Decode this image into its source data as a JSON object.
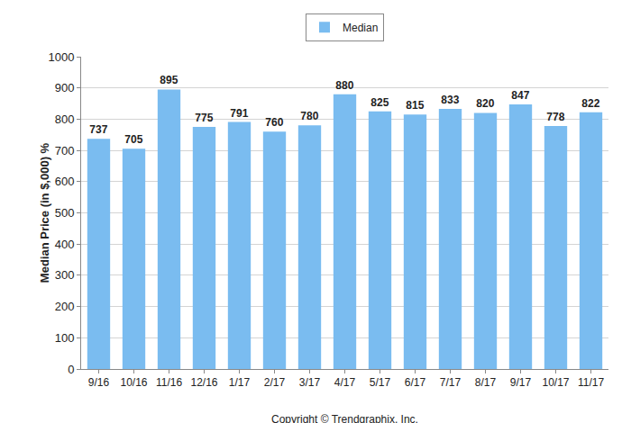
{
  "chart_data": {
    "type": "bar",
    "y_label": "Median Price (in $,000) %",
    "categories": [
      "9/16",
      "10/16",
      "11/16",
      "12/16",
      "1/17",
      "2/17",
      "3/17",
      "4/17",
      "5/17",
      "6/17",
      "7/17",
      "8/17",
      "9/17",
      "10/17",
      "11/17"
    ],
    "series": [
      {
        "name": "Median",
        "color": "#7abcf0",
        "values": [
          737,
          705,
          895,
          775,
          791,
          760,
          780,
          880,
          825,
          815,
          833,
          820,
          847,
          778,
          822
        ]
      }
    ],
    "ylim": [
      0,
      1000
    ],
    "yticks": [
      0,
      100,
      200,
      300,
      400,
      500,
      600,
      700,
      800,
      900,
      1000
    ],
    "grid": true,
    "data_labels": true,
    "legend": "top",
    "annotations": [
      {
        "text": "Copyright © Trendgraphix, Inc."
      }
    ]
  }
}
